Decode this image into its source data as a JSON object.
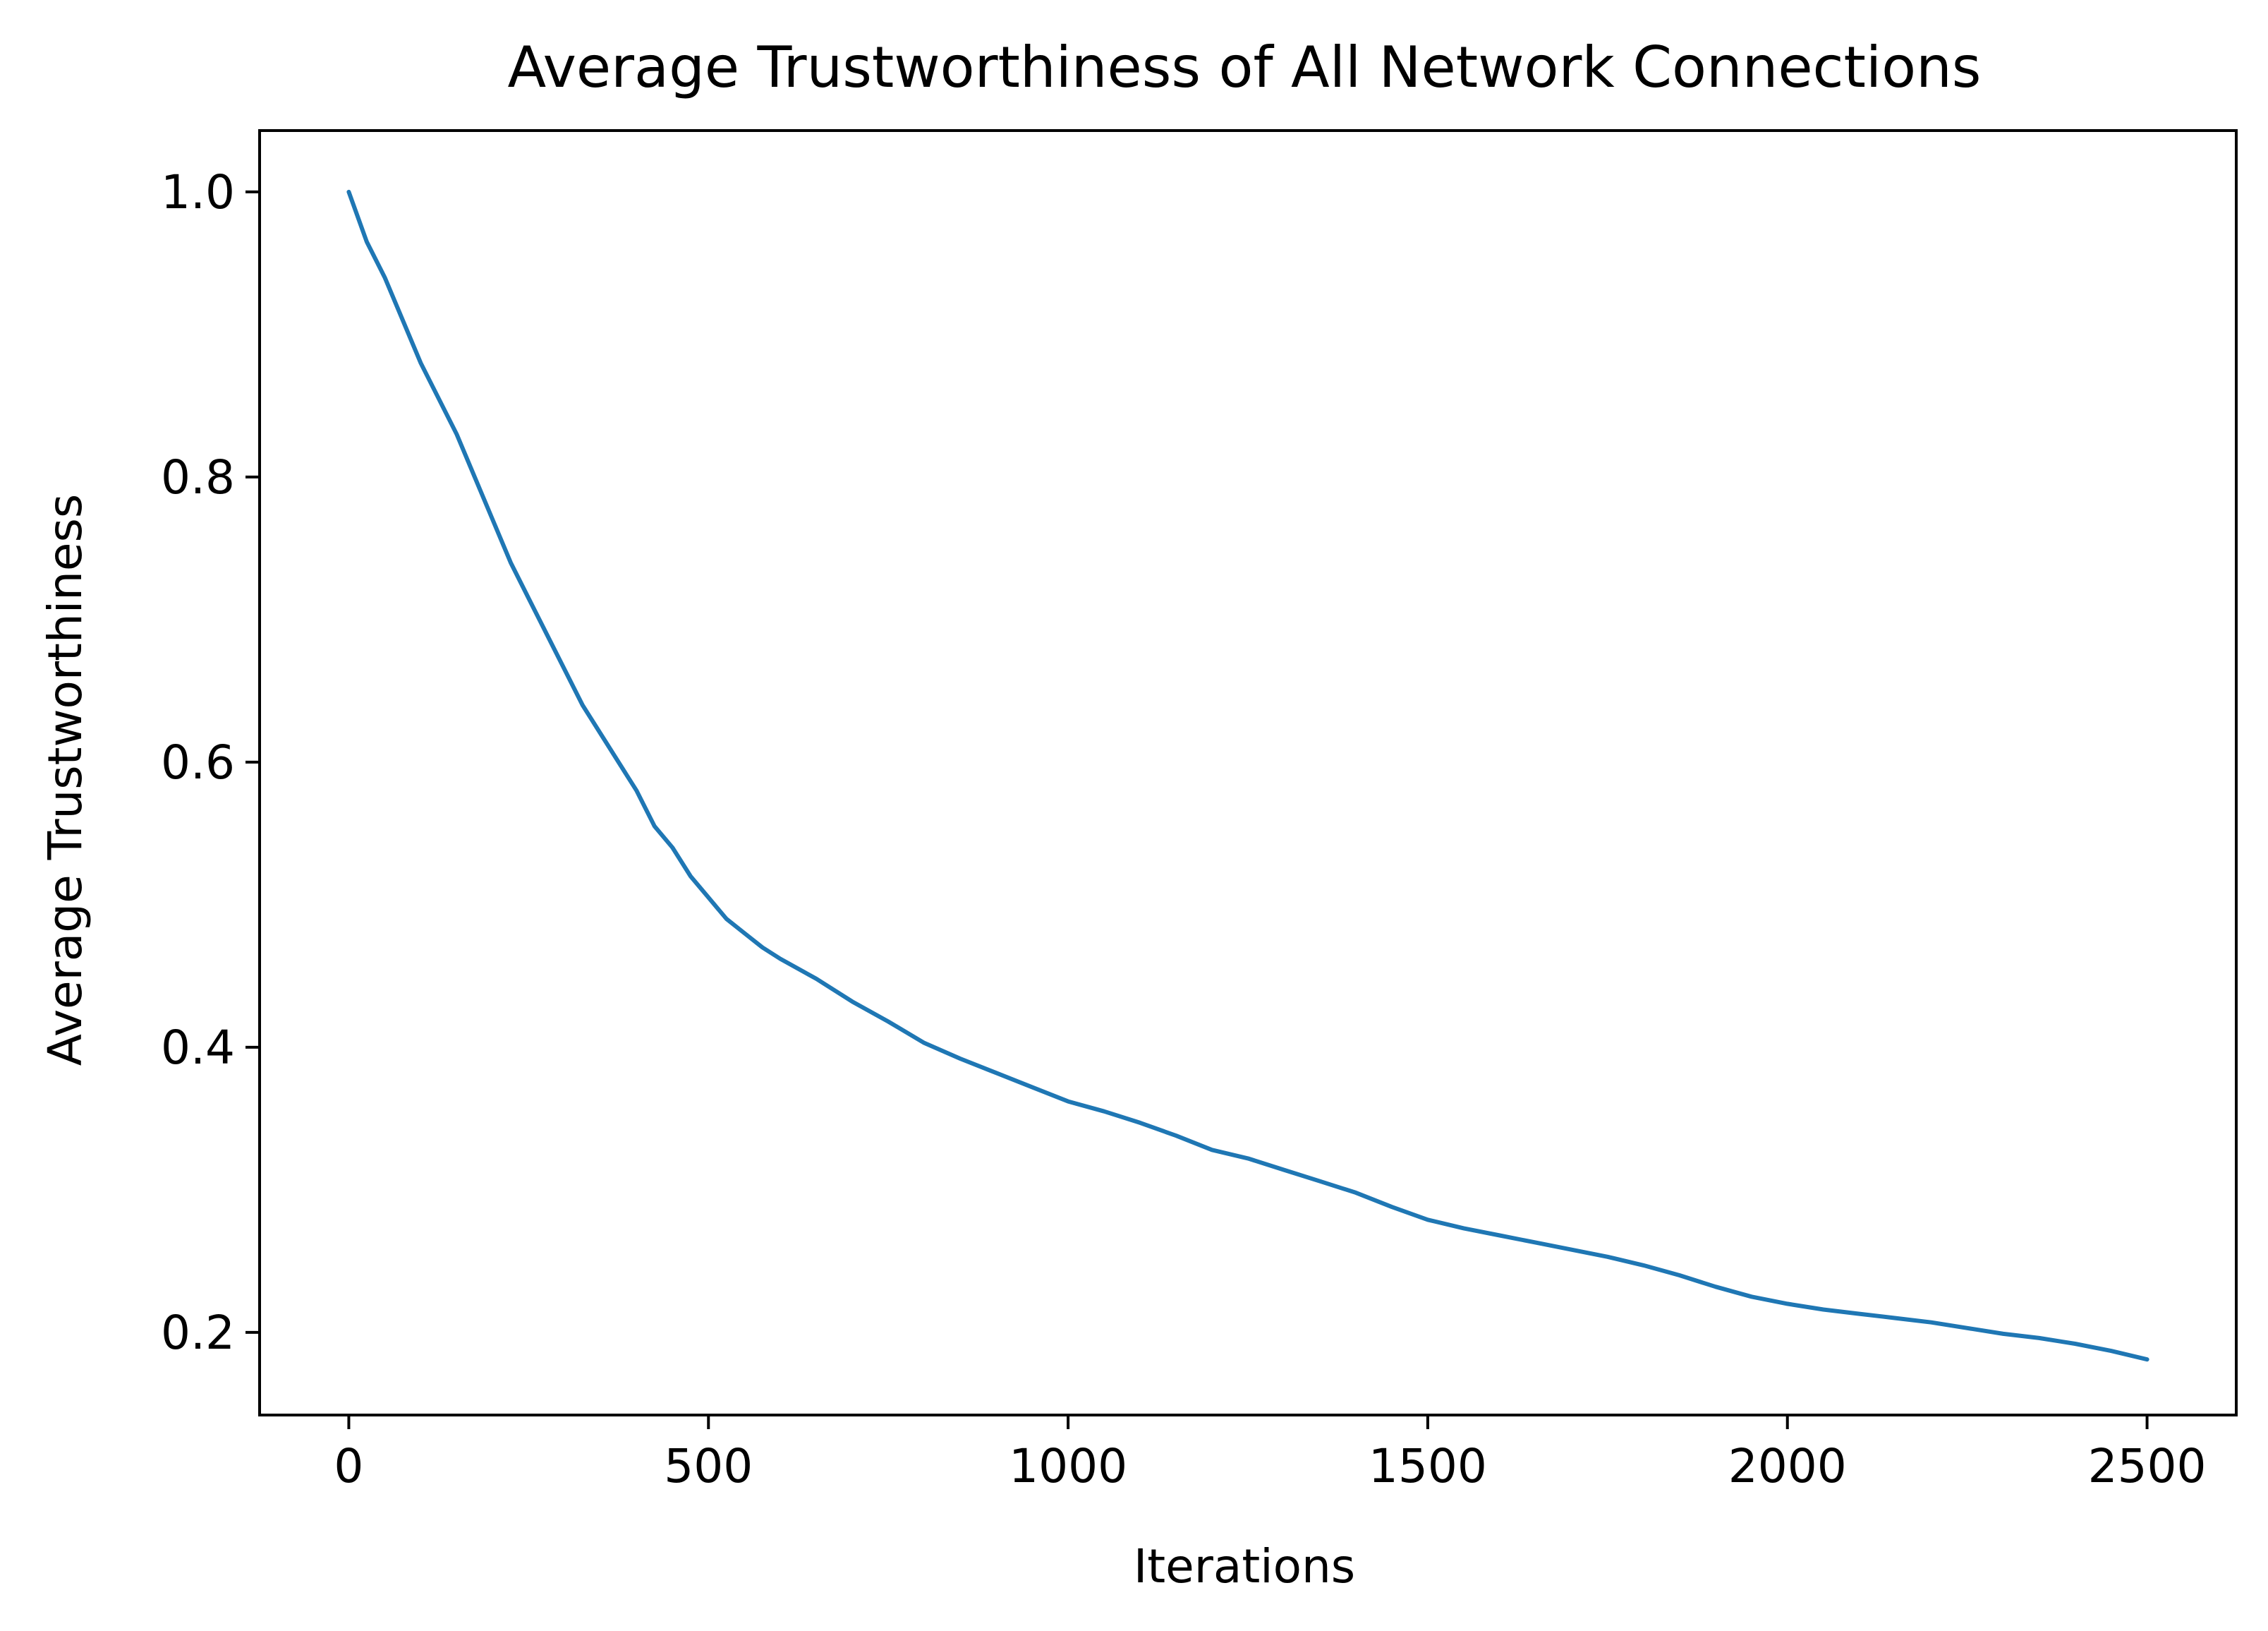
{
  "chart_data": {
    "type": "line",
    "title": "Average Trustworthiness of All Network Connections",
    "xlabel": "Iterations",
    "ylabel": "Average Trustworthiness",
    "xlim": [
      -124,
      2624
    ],
    "ylim": [
      0.142,
      1.043
    ],
    "xticks": [
      0,
      500,
      1000,
      1500,
      2000,
      2500
    ],
    "xtick_labels": [
      "0",
      "500",
      "1000",
      "1500",
      "2000",
      "2500"
    ],
    "yticks": [
      0.2,
      0.4,
      0.6,
      0.8,
      1.0
    ],
    "ytick_labels": [
      "0.2",
      "0.4",
      "0.6",
      "0.8",
      "1.0"
    ],
    "grid": false,
    "legend": "none",
    "colors": {
      "line": "#1f77b4",
      "axes": "#000000"
    },
    "series": [
      {
        "x": [
          0,
          25,
          50,
          75,
          100,
          125,
          150,
          175,
          200,
          225,
          250,
          275,
          300,
          325,
          350,
          375,
          400,
          425,
          450,
          475,
          500,
          525,
          550,
          575,
          600,
          650,
          700,
          750,
          800,
          850,
          900,
          950,
          1000,
          1050,
          1100,
          1150,
          1200,
          1250,
          1300,
          1350,
          1400,
          1450,
          1500,
          1550,
          1600,
          1650,
          1700,
          1750,
          1800,
          1850,
          1900,
          1950,
          2000,
          2050,
          2100,
          2150,
          2200,
          2250,
          2300,
          2350,
          2400,
          2450,
          2500
        ],
        "y": [
          1.0,
          0.965,
          0.94,
          0.91,
          0.88,
          0.855,
          0.83,
          0.8,
          0.77,
          0.74,
          0.715,
          0.69,
          0.665,
          0.64,
          0.62,
          0.6,
          0.58,
          0.555,
          0.54,
          0.52,
          0.505,
          0.49,
          0.48,
          0.47,
          0.462,
          0.448,
          0.432,
          0.418,
          0.403,
          0.392,
          0.382,
          0.372,
          0.362,
          0.355,
          0.347,
          0.338,
          0.328,
          0.322,
          0.314,
          0.306,
          0.298,
          0.288,
          0.279,
          0.273,
          0.268,
          0.263,
          0.258,
          0.253,
          0.247,
          0.24,
          0.232,
          0.225,
          0.22,
          0.216,
          0.213,
          0.21,
          0.207,
          0.203,
          0.199,
          0.196,
          0.192,
          0.187,
          0.181
        ]
      }
    ]
  }
}
